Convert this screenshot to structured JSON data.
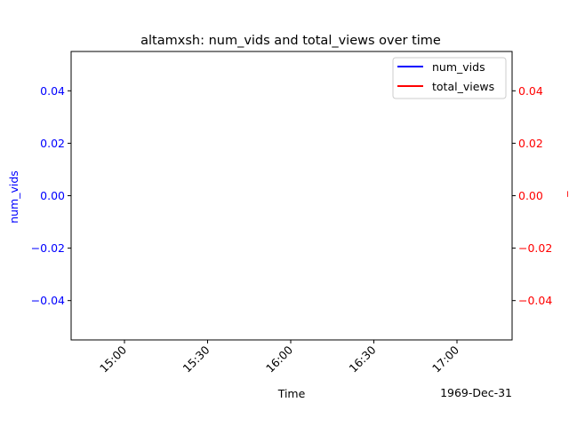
{
  "chart_data": {
    "type": "line",
    "title": "altamxsh: num_vids and total_views over time",
    "xlabel": "Time",
    "x_offset_label": "1969-Dec-31",
    "x_ticks": [
      "15:00",
      "15:30",
      "16:00",
      "16:30",
      "17:00"
    ],
    "y_left": {
      "label": "num_vids",
      "color": "#0000ff",
      "ylim": [
        -0.055,
        0.055
      ],
      "ticks": [
        "0.04",
        "0.02",
        "0.00",
        "−0.02",
        "−0.04"
      ]
    },
    "y_right": {
      "label": "total_views",
      "color": "#ff0000",
      "ylim": [
        -0.055,
        0.055
      ],
      "ticks": [
        "0.04",
        "0.02",
        "0.00",
        "−0.02",
        "−0.04"
      ]
    },
    "series": [
      {
        "name": "num_vids",
        "color": "#0000ff",
        "axis": "left",
        "x": [],
        "y": []
      },
      {
        "name": "total_views",
        "color": "#ff0000",
        "axis": "right",
        "x": [],
        "y": []
      }
    ],
    "legend": "top-right",
    "grid": false
  }
}
